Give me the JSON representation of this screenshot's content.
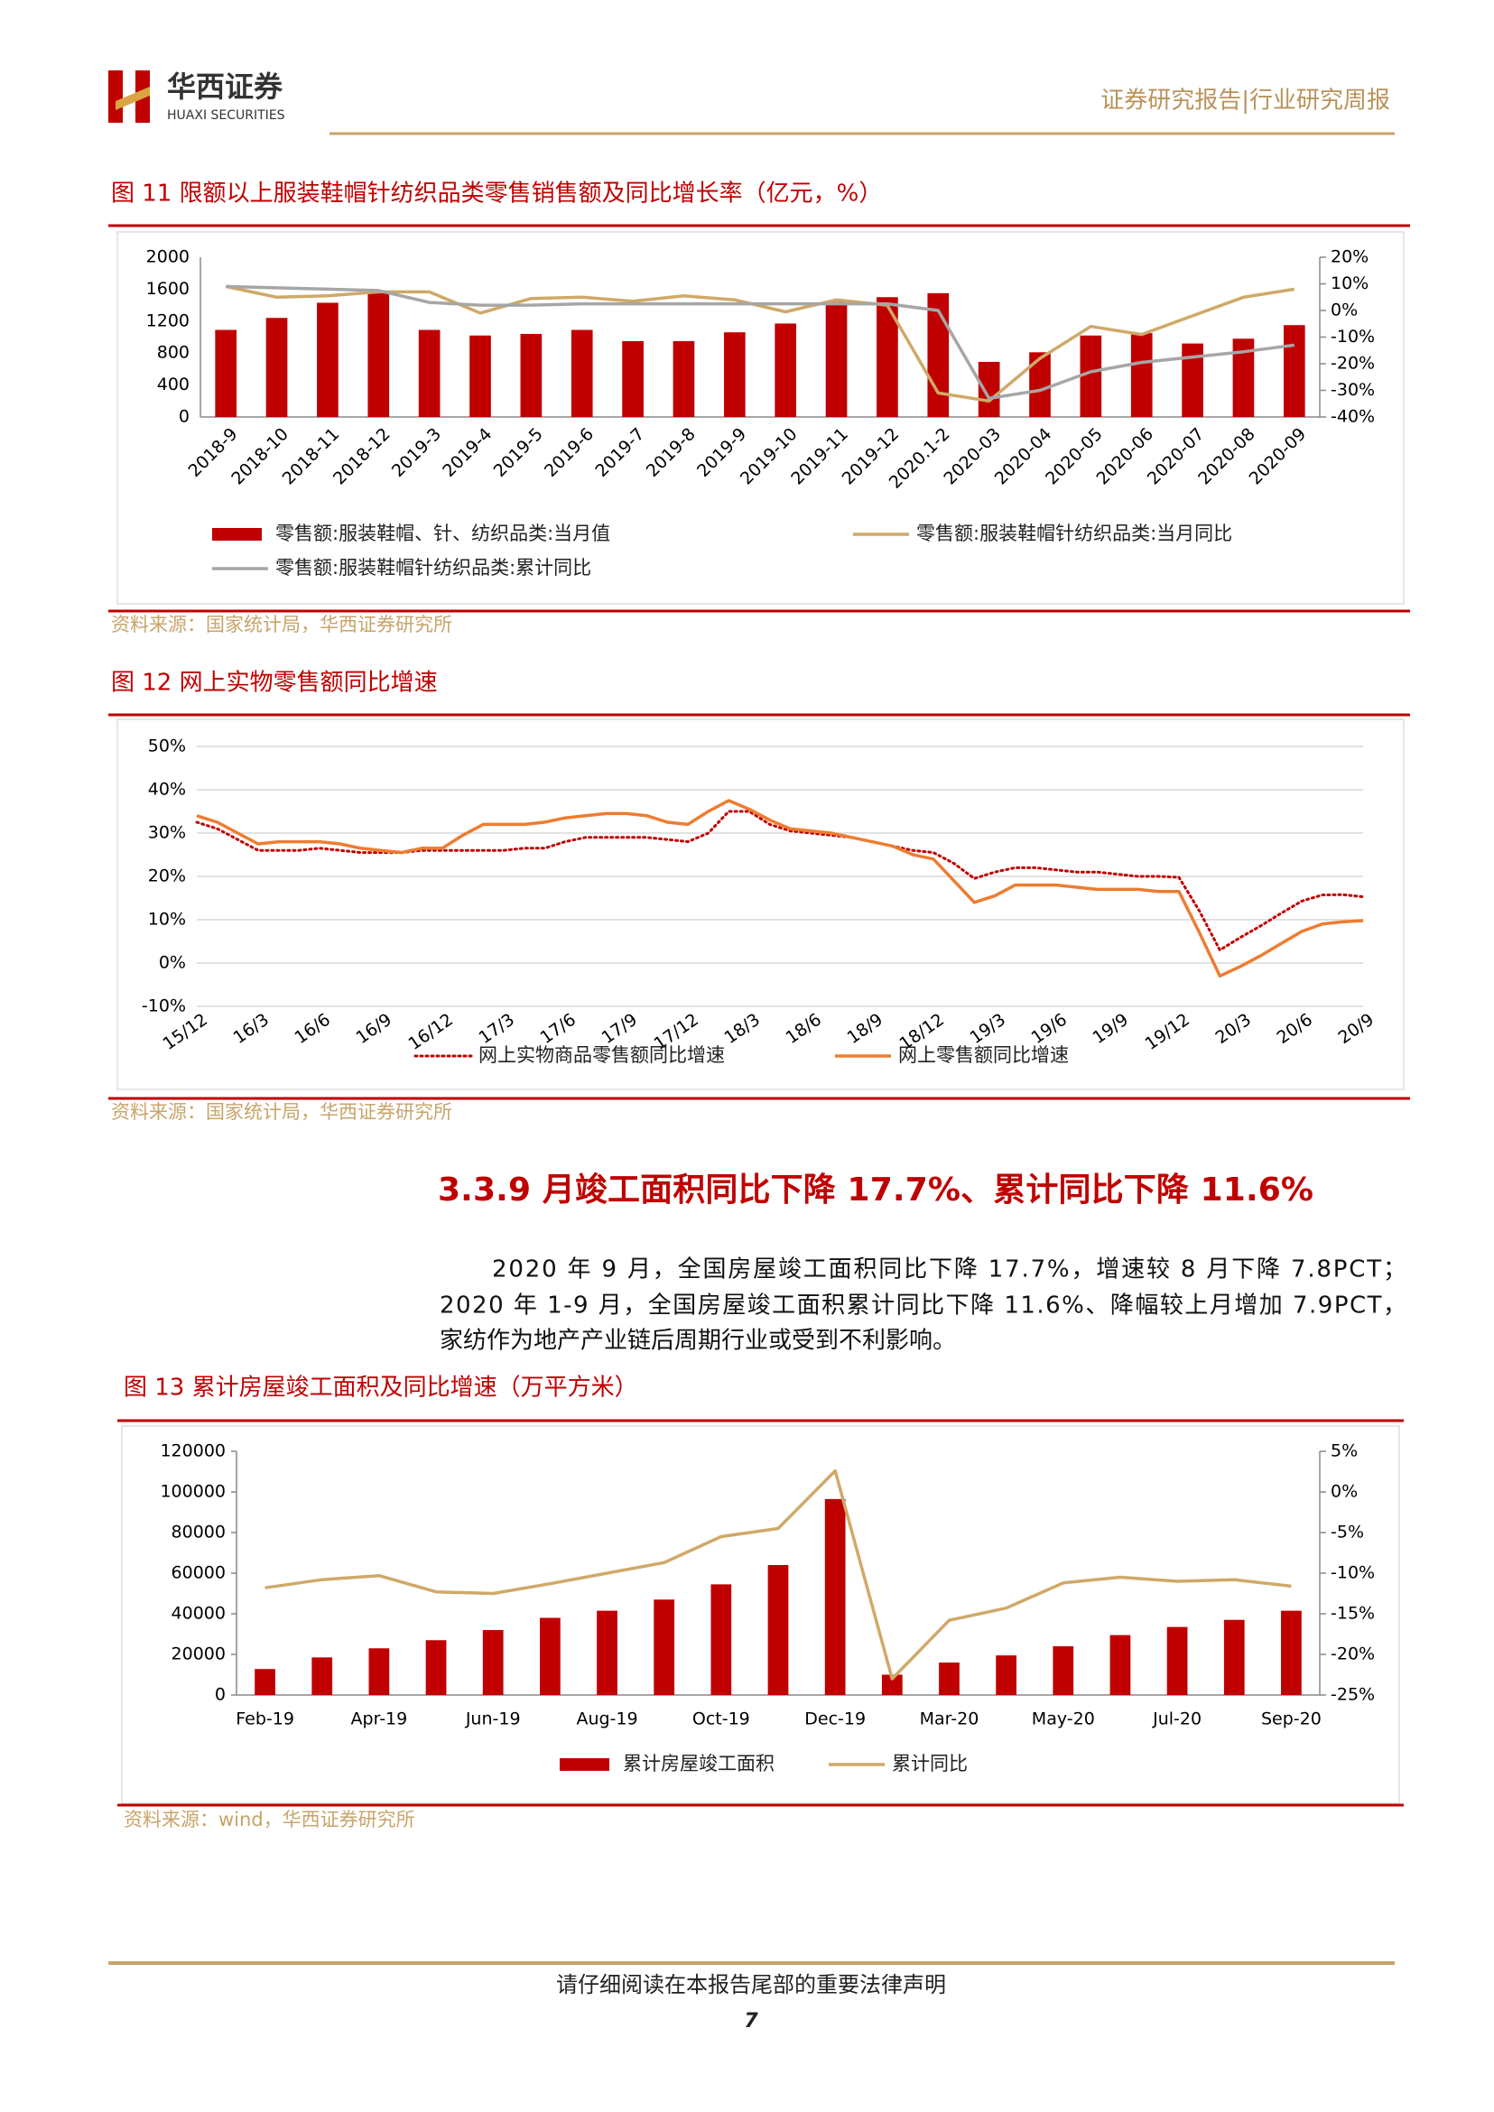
{
  "header": {
    "logo_cn": "华西证券",
    "logo_en": "HUAXI SECURITIES",
    "report_type": "证券研究报告|行业研究周报"
  },
  "section": {
    "heading": "3.3.9 月竣工面积同比下降 17.7%、累计同比下降 11.6%",
    "paragraph": [
      "2020 年 9 月，全国房屋竣工面积同比下降 17.7%，增速较 8 月下降 7.8PCT；",
      "2020 年 1-9 月，全国房屋竣工面积累计同比下降 11.6%、降幅较上月增加 7.9PCT，",
      "家纺作为地产产业链后周期行业或受到不利影响。"
    ]
  },
  "footer": {
    "notice": "请仔细阅读在本报告尾部的重要法律声明",
    "page": 7
  },
  "chart_data": [
    {
      "type": "bar",
      "title": "图 11 限额以上服装鞋帽针纺织品类零售销售额及同比增长率（亿元，%）",
      "source": "资料来源：国家统计局，华西证券研究所",
      "categories": [
        "2018-9",
        "2018-10",
        "2018-11",
        "2018-12",
        "2019-3",
        "2019-4",
        "2019-5",
        "2019-6",
        "2019-7",
        "2019-8",
        "2019-9",
        "2019-10",
        "2019-11",
        "2019-12",
        "2020.1-2",
        "2020-03",
        "2020-04",
        "2020-05",
        "2020-06",
        "2020-07",
        "2020-08",
        "2020-09"
      ],
      "ylim": [
        0,
        2000
      ],
      "yticks": [
        0,
        400,
        800,
        1200,
        1600,
        2000
      ],
      "y2lim": [
        -40,
        20
      ],
      "y2ticks": [
        {
          "value": 20,
          "label": "20%"
        },
        {
          "value": 10,
          "label": "10%"
        },
        {
          "value": 0,
          "label": "0%"
        },
        {
          "value": -10,
          "label": "-10%"
        },
        {
          "value": -20,
          "label": "-20%"
        },
        {
          "value": -30,
          "label": "-30%"
        },
        {
          "value": -40,
          "label": "-40%"
        }
      ],
      "grid": false,
      "series": [
        {
          "name": "零售额:服装鞋帽、针、纺织品类:当月值",
          "type": "bar",
          "color": "#c00000",
          "values": [
            1090,
            1240,
            1430,
            1560,
            1090,
            1020,
            1040,
            1090,
            950,
            950,
            1060,
            1170,
            1440,
            1500,
            1550,
            690,
            810,
            1020,
            1050,
            920,
            980,
            1150
          ]
        },
        {
          "name": "零售额:服装鞋帽针纺织品类:当月同比",
          "type": "line",
          "axis": "y2",
          "color": "#cfa968",
          "values": [
            9,
            5,
            5.5,
            7,
            7,
            -1,
            4.5,
            5,
            3.5,
            5.5,
            4,
            -0.5,
            4,
            2,
            -31,
            -34,
            -18,
            -6,
            -9,
            -2,
            5,
            8
          ]
        },
        {
          "name": "零售额:服装鞋帽针纺织品类:累计同比",
          "type": "line",
          "axis": "y2",
          "color": "#a6a6a6",
          "values": [
            9,
            8.5,
            8,
            7.5,
            3,
            2,
            2,
            2.5,
            2.5,
            2.5,
            2.5,
            2.5,
            2.5,
            2.5,
            0,
            -33,
            -30,
            -23,
            -19.5,
            -17.5,
            -15.5,
            -13
          ]
        }
      ]
    },
    {
      "type": "line",
      "title": "图 12 网上实物零售额同比增速",
      "source": "资料来源：国家统计局，华西证券研究所",
      "categories": [
        "15/12",
        null,
        null,
        "16/3",
        null,
        null,
        "16/6",
        null,
        null,
        "16/9",
        null,
        null,
        "16/12",
        null,
        null,
        "17/3",
        null,
        null,
        "17/6",
        null,
        null,
        "17/9",
        null,
        null,
        "17/12",
        null,
        null,
        "18/3",
        null,
        null,
        "18/6",
        null,
        null,
        "18/9",
        null,
        null,
        "18/12",
        null,
        null,
        "19/3",
        null,
        null,
        "19/6",
        null,
        null,
        "19/9",
        null,
        null,
        "19/12",
        null,
        null,
        "20/3",
        null,
        null,
        "20/6",
        null,
        null,
        "20/9"
      ],
      "ylim": [
        -10,
        50
      ],
      "yticks": [
        {
          "value": -10,
          "label": "-10%"
        },
        {
          "value": 0,
          "label": "0%"
        },
        {
          "value": 10,
          "label": "10%"
        },
        {
          "value": 20,
          "label": "20%"
        },
        {
          "value": 30,
          "label": "30%"
        },
        {
          "value": 40,
          "label": "40%"
        },
        {
          "value": 50,
          "label": "50%"
        }
      ],
      "grid": true,
      "series": [
        {
          "name": "网上实物商品零售额同比增速",
          "color": "#c00000",
          "dash": "dotted",
          "values": [
            32.5,
            31,
            28.5,
            26,
            26,
            26,
            26.5,
            26,
            25.5,
            25.5,
            25.5,
            26,
            26,
            26,
            26,
            26,
            26.5,
            26.5,
            28,
            29,
            29,
            29,
            29,
            28.5,
            28,
            30,
            35,
            35,
            32,
            30.5,
            30,
            29.5,
            29,
            28,
            27,
            26,
            25.5,
            23,
            19.5,
            21,
            22,
            22,
            21.5,
            21,
            21,
            20.5,
            20,
            20,
            19.8,
            12,
            3,
            5.9,
            8.6,
            11.5,
            14.3,
            15.7,
            15.8,
            15.3
          ]
        },
        {
          "name": "网上零售额同比增速",
          "color": "#ed7d31",
          "dash": "solid",
          "values": [
            34,
            32.5,
            30,
            27.5,
            28,
            28,
            28,
            27.5,
            26.5,
            26,
            25.5,
            26.5,
            26.5,
            29.5,
            32,
            32,
            32,
            32.5,
            33.5,
            34,
            34.5,
            34.5,
            34,
            32.5,
            32,
            35,
            37.5,
            35.5,
            33,
            31,
            30.5,
            30,
            29,
            28,
            27,
            25,
            24,
            19,
            14,
            15.5,
            18,
            18,
            18,
            17.5,
            17,
            17,
            17,
            16.5,
            16.5,
            7,
            -3,
            -0.8,
            1.7,
            4.5,
            7.3,
            9,
            9.5,
            9.8
          ]
        }
      ]
    },
    {
      "type": "bar",
      "title": "图 13 累计房屋竣工面积及同比增速（万平方米）",
      "source": "资料来源：wind，华西证券研究所",
      "categories": [
        "Feb-19",
        null,
        "Apr-19",
        null,
        "Jun-19",
        null,
        "Aug-19",
        null,
        "Oct-19",
        null,
        "Dec-19",
        null,
        "Mar-20",
        null,
        "May-20",
        null,
        "Jul-20",
        null,
        "Sep-20"
      ],
      "ylim": [
        0,
        120000
      ],
      "yticks": [
        0,
        20000,
        40000,
        60000,
        80000,
        100000,
        120000
      ],
      "y2lim": [
        -25,
        5
      ],
      "y2ticks": [
        {
          "value": 5,
          "label": "5%"
        },
        {
          "value": 0,
          "label": "0%"
        },
        {
          "value": -5,
          "label": "-5%"
        },
        {
          "value": -10,
          "label": "-10%"
        },
        {
          "value": -15,
          "label": "-15%"
        },
        {
          "value": -20,
          "label": "-20%"
        },
        {
          "value": -25,
          "label": "-25%"
        }
      ],
      "grid": false,
      "series": [
        {
          "name": "累计房屋竣工面积",
          "type": "bar",
          "color": "#c00000",
          "values": [
            12800,
            18500,
            23000,
            27000,
            32000,
            38000,
            41500,
            47000,
            54500,
            64000,
            96500,
            10000,
            16000,
            19500,
            24000,
            29500,
            33500,
            37000,
            41500
          ]
        },
        {
          "name": "累计同比",
          "type": "line",
          "axis": "y2",
          "color": "#cfa968",
          "values": [
            -11.8,
            -10.8,
            -10.3,
            -12.3,
            -12.5,
            -11.3,
            -10,
            -8.7,
            -5.5,
            -4.5,
            2.6,
            -23,
            -15.8,
            -14.3,
            -11.2,
            -10.5,
            -11,
            -10.8,
            -11.6
          ]
        }
      ]
    }
  ]
}
